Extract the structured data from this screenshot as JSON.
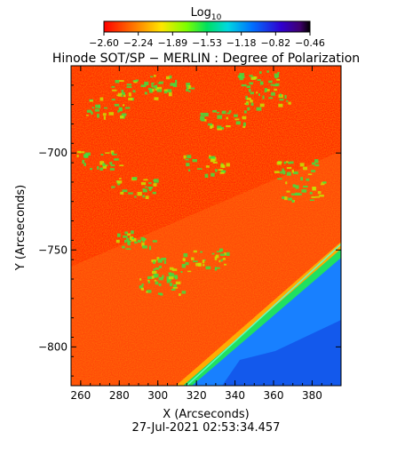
{
  "chart_data": {
    "type": "heatmap",
    "title": "Hinode SOT/SP − MERLIN : Degree of Polarization",
    "xlabel": "X (Arcseconds)",
    "ylabel": "Y (Arcseconds)",
    "timestamp": "27-Jul-2021 02:53:34.457",
    "xlim": [
      255,
      395
    ],
    "ylim": [
      -820,
      -655
    ],
    "x_ticks": [
      260,
      280,
      300,
      320,
      340,
      360,
      380
    ],
    "y_ticks": [
      -700,
      -750,
      -800
    ],
    "x_tick_labels": [
      "260",
      "280",
      "300",
      "320",
      "340",
      "360",
      "380"
    ],
    "y_tick_labels": [
      "−700",
      "−750",
      "−800"
    ],
    "colorbar": {
      "title_base": "Log",
      "title_sub": "10",
      "min": -2.6,
      "max": -0.46,
      "ticks": [
        "−2.60",
        "−2.24",
        "−1.89",
        "−1.53",
        "−1.18",
        "−0.82",
        "−0.46"
      ],
      "colormap": "rainbow"
    },
    "limb_line": {
      "points": [
        [
          315,
          -820
        ],
        [
          395,
          -747
        ]
      ]
    },
    "grid": false
  }
}
